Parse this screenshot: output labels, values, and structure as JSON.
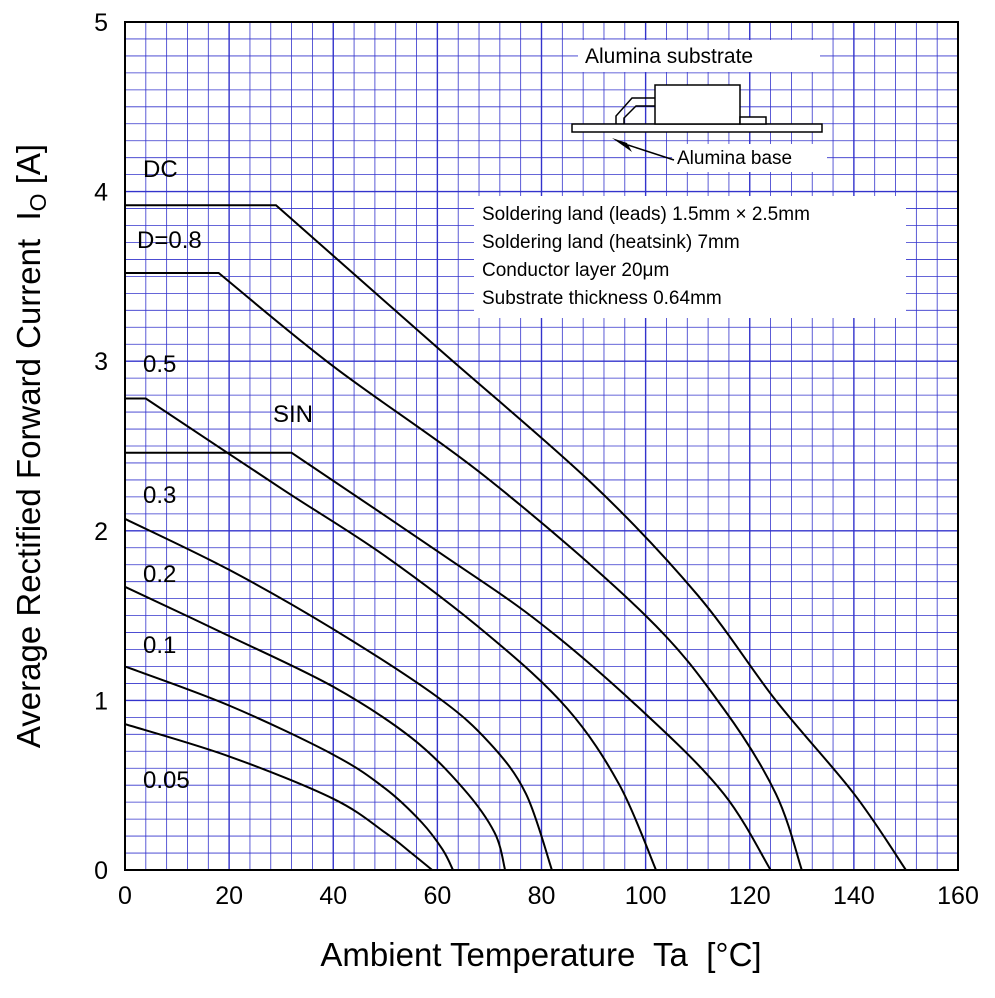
{
  "chart_data": {
    "type": "line",
    "xlabel": "Ambient Temperature  Ta  [°C]",
    "ylabel_main": "Average Rectified Forward Current  I",
    "ylabel_sub": "O",
    "ylabel_unit": " [A]",
    "xlim": [
      0,
      160
    ],
    "ylim": [
      0,
      5
    ],
    "x_ticks": [
      "0",
      "20",
      "40",
      "60",
      "80",
      "100",
      "120",
      "140",
      "160"
    ],
    "y_ticks": [
      "0",
      "1",
      "2",
      "3",
      "4",
      "5"
    ],
    "grid": true,
    "series": [
      {
        "name": "DC",
        "points": [
          [
            0,
            3.92
          ],
          [
            29,
            3.92
          ],
          [
            60,
            3.08
          ],
          [
            90,
            2.27
          ],
          [
            110,
            1.62
          ],
          [
            125,
            1.0
          ],
          [
            140,
            0.45
          ],
          [
            150,
            0
          ]
        ]
      },
      {
        "name": "D=0.8",
        "points": [
          [
            0,
            3.52
          ],
          [
            18,
            3.52
          ],
          [
            40,
            2.97
          ],
          [
            70,
            2.3
          ],
          [
            100,
            1.5
          ],
          [
            115,
            0.95
          ],
          [
            125,
            0.45
          ],
          [
            130,
            0
          ]
        ]
      },
      {
        "name": "SIN",
        "points": [
          [
            0,
            2.46
          ],
          [
            32,
            2.46
          ],
          [
            60,
            1.88
          ],
          [
            80,
            1.45
          ],
          [
            100,
            0.92
          ],
          [
            115,
            0.45
          ],
          [
            124,
            0
          ]
        ]
      },
      {
        "name": "0.5",
        "points": [
          [
            0,
            2.78
          ],
          [
            4,
            2.78
          ],
          [
            30,
            2.25
          ],
          [
            50,
            1.85
          ],
          [
            70,
            1.38
          ],
          [
            85,
            0.95
          ],
          [
            95,
            0.5
          ],
          [
            102,
            0
          ]
        ]
      },
      {
        "name": "0.3",
        "points": [
          [
            0,
            2.07
          ],
          [
            20,
            1.77
          ],
          [
            40,
            1.42
          ],
          [
            60,
            1.02
          ],
          [
            70,
            0.75
          ],
          [
            77,
            0.45
          ],
          [
            82,
            0
          ]
        ]
      },
      {
        "name": "0.2",
        "points": [
          [
            0,
            1.67
          ],
          [
            20,
            1.38
          ],
          [
            40,
            1.08
          ],
          [
            55,
            0.78
          ],
          [
            65,
            0.48
          ],
          [
            71,
            0.22
          ],
          [
            73,
            0
          ]
        ]
      },
      {
        "name": "0.1",
        "points": [
          [
            0,
            1.2
          ],
          [
            20,
            0.97
          ],
          [
            40,
            0.68
          ],
          [
            50,
            0.48
          ],
          [
            57,
            0.28
          ],
          [
            61,
            0.12
          ],
          [
            63,
            0
          ]
        ]
      },
      {
        "name": "0.05",
        "points": [
          [
            0,
            0.86
          ],
          [
            20,
            0.67
          ],
          [
            40,
            0.42
          ],
          [
            50,
            0.22
          ],
          [
            55,
            0.1
          ],
          [
            59,
            0
          ]
        ]
      }
    ]
  },
  "curve_labels": {
    "dc": "DC",
    "d08": "D=0.8",
    "d05": "0.5",
    "sin": "SIN",
    "d03": "0.3",
    "d02": "0.2",
    "d01": "0.1",
    "d005": "0.05"
  },
  "inset": {
    "substrate_label": "Alumina  substrate",
    "base_label": "Alumina base"
  },
  "conditions": [
    "Soldering land (leads) 1.5mm × 2.5mm",
    "Soldering land (heatsink) 7mm",
    "Conductor layer 20μm",
    "Substrate  thickness  0.64mm"
  ],
  "colors": {
    "grid": "#3333cc",
    "curve": "#000000",
    "frame": "#000000"
  }
}
